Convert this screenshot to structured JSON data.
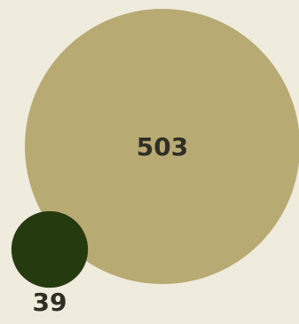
{
  "chart_data": {
    "type": "bubble",
    "series": [
      {
        "value": 503,
        "label": "503"
      },
      {
        "value": 39,
        "label": "39"
      }
    ]
  },
  "colors": {
    "background": "#efebdd",
    "large_bubble": "#b8aa73",
    "small_bubble": "#253a0f",
    "label_text": "#2f2f26"
  }
}
